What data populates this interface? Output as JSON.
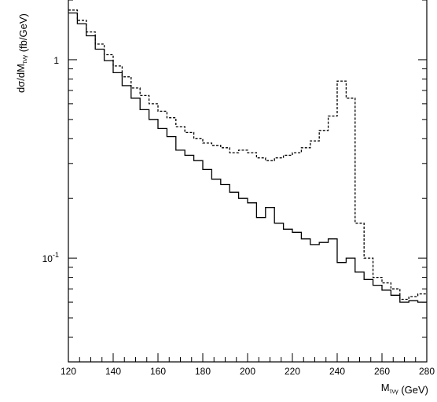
{
  "chart_data": {
    "type": "line",
    "style": "step histogram",
    "xlabel": "M_{τνγ} (GeV)",
    "ylabel": "dσ/dM_{τνγ} (fb/GeV)",
    "xlim": [
      120,
      280
    ],
    "ylim": [
      0.03,
      2.0
    ],
    "yscale": "log",
    "grid": false,
    "bin_width": 4,
    "bin_edges_start": 120,
    "x_ticks": [
      120,
      140,
      160,
      180,
      200,
      220,
      240,
      260,
      280
    ],
    "x_tick_labels": [
      "120",
      "140",
      "160",
      "180",
      "200",
      "220",
      "240",
      "260",
      "280"
    ],
    "y_tick_labels": [
      {
        "value": 1,
        "label": "1"
      },
      {
        "value": 0.1,
        "label": "10^-1"
      }
    ],
    "series": [
      {
        "line": "solid",
        "values": [
          1.72,
          1.52,
          1.32,
          1.13,
          0.99,
          0.86,
          0.74,
          0.64,
          0.56,
          0.5,
          0.45,
          0.41,
          0.35,
          0.33,
          0.31,
          0.28,
          0.25,
          0.235,
          0.215,
          0.2,
          0.19,
          0.16,
          0.18,
          0.15,
          0.14,
          0.135,
          0.125,
          0.117,
          0.12,
          0.125,
          0.095,
          0.1,
          0.085,
          0.078,
          0.073,
          0.069,
          0.065,
          0.06,
          0.061,
          0.06
        ]
      },
      {
        "line": "dashed",
        "values": [
          1.78,
          1.58,
          1.38,
          1.2,
          1.06,
          0.93,
          0.82,
          0.72,
          0.66,
          0.6,
          0.55,
          0.51,
          0.46,
          0.43,
          0.4,
          0.38,
          0.37,
          0.36,
          0.34,
          0.35,
          0.34,
          0.32,
          0.31,
          0.32,
          0.33,
          0.34,
          0.36,
          0.39,
          0.44,
          0.52,
          0.78,
          0.64,
          0.15,
          0.1,
          0.08,
          0.075,
          0.07,
          0.062,
          0.064,
          0.066
        ]
      }
    ]
  }
}
